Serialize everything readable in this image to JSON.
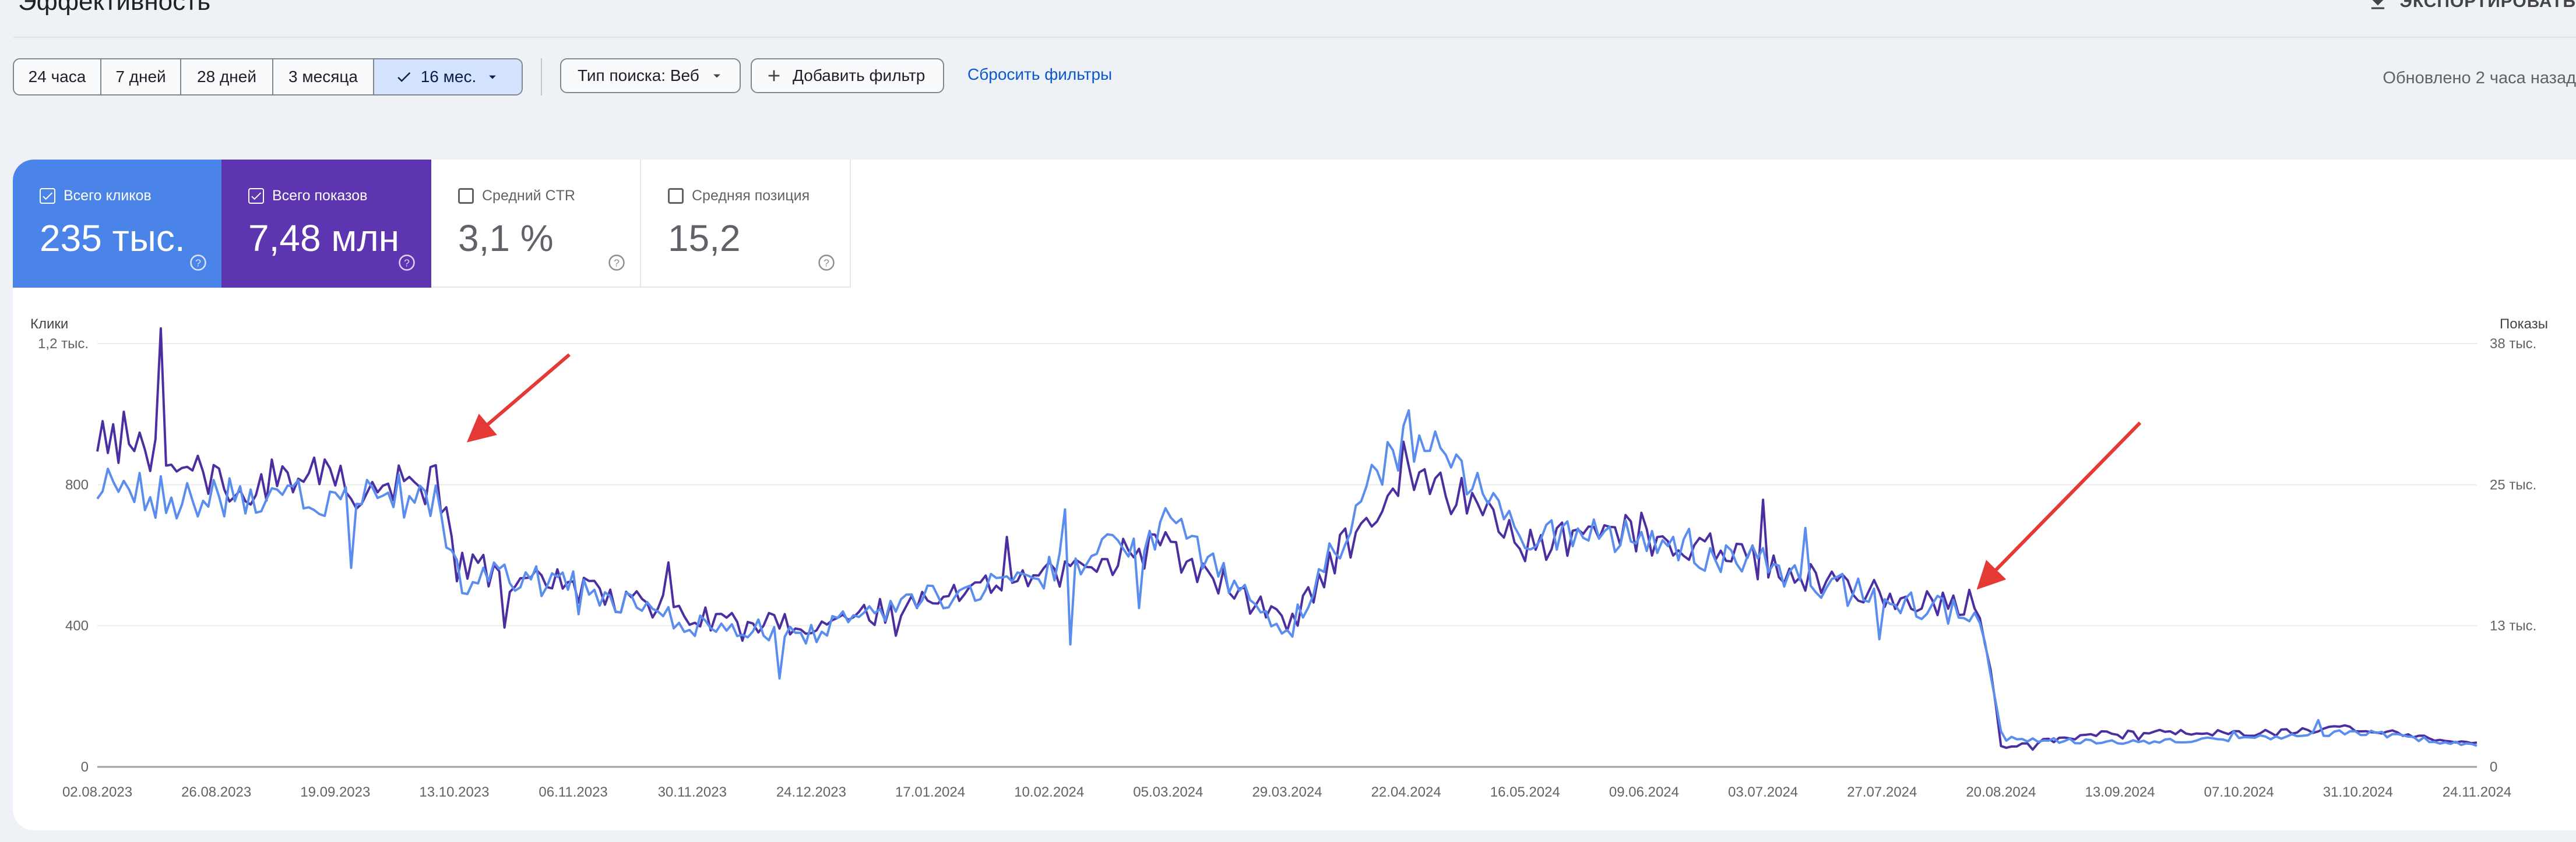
{
  "header": {
    "title": "Эффективность",
    "export_label": "ЭКСПОРТИРОВАТЬ"
  },
  "filters": {
    "ranges": [
      "24 часа",
      "7 дней",
      "28 дней",
      "3 месяца",
      "16 мес."
    ],
    "selected_range": "16 мес.",
    "search_type": "Тип поиска: Веб",
    "add_filter": "Добавить фильтр",
    "reset": "Сбросить фильтры",
    "updated": "Обновлено 2 часа назад"
  },
  "metrics": {
    "clicks": {
      "label": "Всего кликов",
      "value": "235 тыс.",
      "checked": true,
      "color": "#4a84e8"
    },
    "impressions": {
      "label": "Всего показов",
      "value": "7,48 млн",
      "checked": true,
      "color": "#5e35b1"
    },
    "ctr": {
      "label": "Средний CTR",
      "value": "3,1 %",
      "checked": false
    },
    "position": {
      "label": "Средняя позиция",
      "value": "15,2",
      "checked": false
    }
  },
  "chart_data": {
    "type": "line",
    "left_axis": {
      "title": "Клики",
      "ticks": [
        "0",
        "400",
        "800",
        "1,2 тыс."
      ],
      "range": [
        0,
        1200
      ]
    },
    "right_axis": {
      "title": "Показы",
      "ticks": [
        "0",
        "13 тыс.",
        "25 тыс.",
        "38 тыс."
      ],
      "range": [
        0,
        38000
      ]
    },
    "x_labels": [
      "02.08.2023",
      "26.08.2023",
      "19.09.2023",
      "13.10.2023",
      "06.11.2023",
      "30.11.2023",
      "24.12.2023",
      "17.01.2024",
      "10.02.2024",
      "05.03.2024",
      "29.03.2024",
      "22.04.2024",
      "16.05.2024",
      "09.06.2024",
      "03.07.2024",
      "27.07.2024",
      "20.08.2024",
      "13.09.2024",
      "07.10.2024",
      "31.10.2024",
      "24.11.2024"
    ],
    "grid": true,
    "series": [
      {
        "name": "Всего кликов",
        "color": "#5b8def",
        "axis": "left",
        "x": [
          "02.08.2023",
          "26.08.2023",
          "19.09.2023",
          "10.10.2023",
          "13.10.2023",
          "06.11.2023",
          "30.11.2023",
          "24.12.2023",
          "17.01.2024",
          "10.02.2024",
          "05.03.2024",
          "29.03.2024",
          "22.04.2024",
          "16.05.2024",
          "09.06.2024",
          "03.07.2024",
          "27.07.2024",
          "16.08.2024",
          "20.08.2024",
          "13.09.2024",
          "07.10.2024",
          "31.10.2024",
          "24.11.2024",
          "28.11.2024"
        ],
        "values": [
          790,
          750,
          760,
          770,
          540,
          520,
          400,
          380,
          480,
          550,
          680,
          380,
          960,
          640,
          650,
          570,
          470,
          430,
          80,
          70,
          80,
          100,
          60,
          85
        ]
      },
      {
        "name": "Всего показов",
        "color": "#4b2fa0",
        "axis": "right",
        "x": [
          "02.08.2023",
          "26.08.2023",
          "19.09.2023",
          "10.10.2023",
          "13.10.2023",
          "06.11.2023",
          "30.11.2023",
          "24.12.2023",
          "17.01.2024",
          "10.02.2024",
          "05.03.2024",
          "29.03.2024",
          "22.04.2024",
          "16.05.2024",
          "09.06.2024",
          "03.07.2024",
          "27.07.2024",
          "16.08.2024",
          "20.08.2024",
          "13.09.2024",
          "07.10.2024",
          "31.10.2024",
          "24.11.2024",
          "28.11.2024"
        ],
        "values": [
          30200,
          26000,
          25500,
          25000,
          18000,
          16200,
          13500,
          12500,
          15200,
          17000,
          19800,
          12600,
          27500,
          20000,
          21000,
          18200,
          15300,
          14500,
          1800,
          3200,
          3000,
          3500,
          2000,
          2400
        ]
      }
    ],
    "arrows": 2
  }
}
